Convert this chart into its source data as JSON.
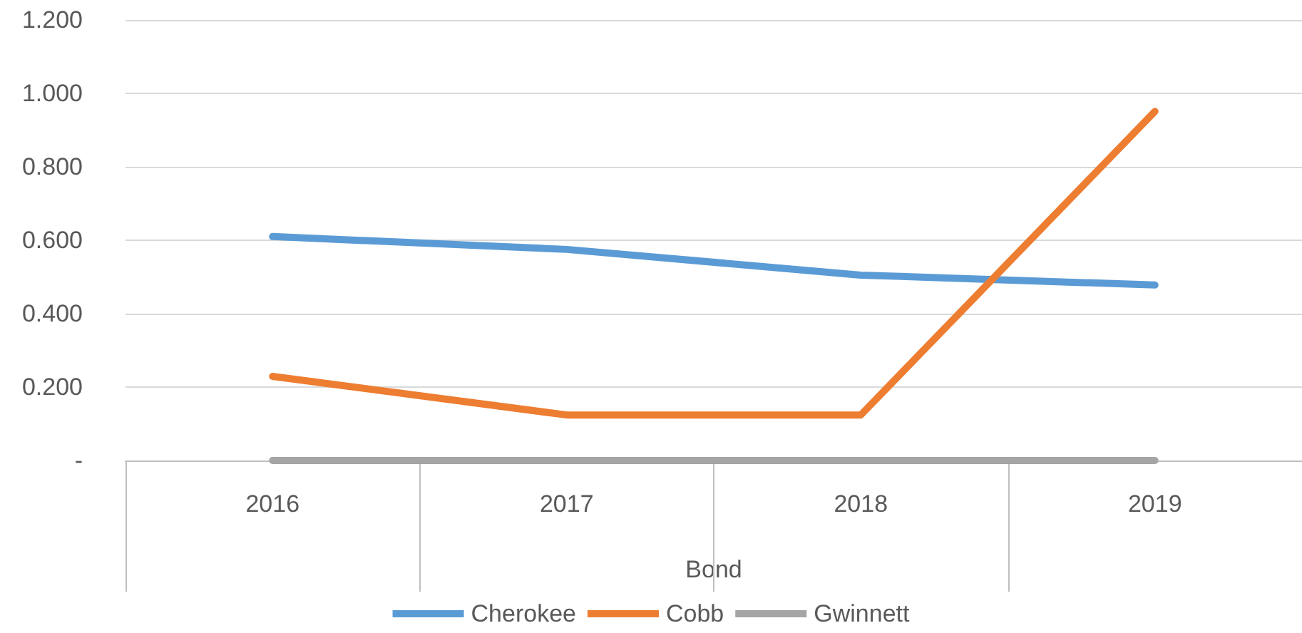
{
  "chart_data": {
    "type": "line",
    "xlabel": "Bond",
    "categories": [
      "2016",
      "2017",
      "2018",
      "2019"
    ],
    "series": [
      {
        "name": "Cherokee",
        "color": "#5b9bd5",
        "values": [
          0.61,
          0.575,
          0.505,
          0.478
        ]
      },
      {
        "name": "Cobb",
        "color": "#ed7d31",
        "values": [
          0.229,
          0.124,
          0.124,
          0.951
        ]
      },
      {
        "name": "Gwinnett",
        "color": "#a5a5a5",
        "values": [
          0,
          0,
          0,
          0
        ]
      }
    ],
    "ylim": [
      0,
      1.2
    ],
    "yticks": [
      {
        "value": 0,
        "label": "-"
      },
      {
        "value": 0.2,
        "label": "0.200"
      },
      {
        "value": 0.4,
        "label": "0.400"
      },
      {
        "value": 0.6,
        "label": "0.600"
      },
      {
        "value": 0.8,
        "label": "0.800"
      },
      {
        "value": 1,
        "label": "1.000"
      },
      {
        "value": 1.2,
        "label": "1.200"
      }
    ],
    "grid": "y",
    "legend": "bottom",
    "marker": "none",
    "line_style": "solid"
  }
}
